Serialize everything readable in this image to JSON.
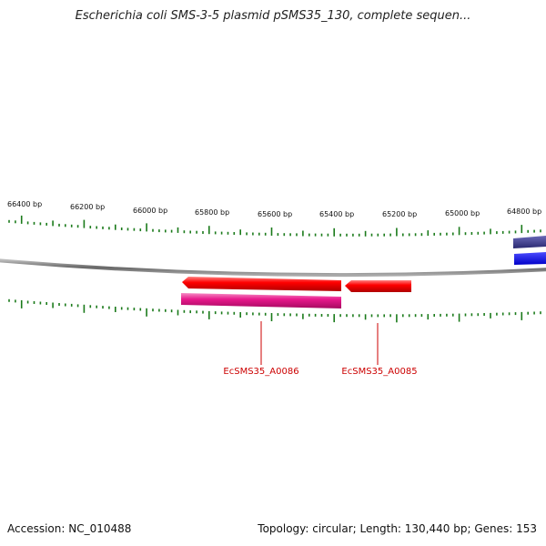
{
  "title": "Escherichia coli SMS-3-5 plasmid pSMS35_130, complete sequen...",
  "footer": {
    "accession": "Accession: NC_010488",
    "summary": "Topology: circular; Length: 130,440 bp; Genes: 153"
  },
  "ruler": {
    "labels": [
      "66400 bp",
      "66200 bp",
      "66000 bp",
      "65800 bp",
      "65600 bp",
      "65400 bp",
      "65200 bp",
      "65000 bp",
      "64800 bp"
    ]
  },
  "genes": [
    {
      "name": "EcSMS35_A0086"
    },
    {
      "name": "EcSMS35_A0085"
    }
  ],
  "colors": {
    "backbone": "#808080",
    "tick": "#1a7a1a",
    "gene_red": "#ff0000",
    "gene_pink": "#e8198c",
    "feature_indigo": "#3b3a8f",
    "feature_blue": "#0000ff",
    "label": "#cc0000"
  }
}
